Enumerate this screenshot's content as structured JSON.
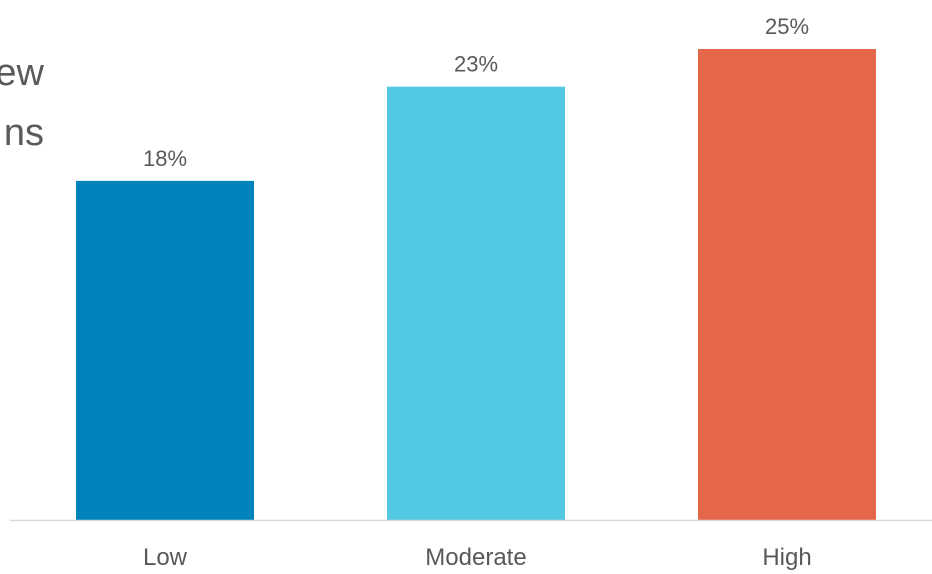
{
  "chart_data": {
    "type": "bar",
    "title_fragments": [
      "ew",
      "ns"
    ],
    "categories": [
      "Low",
      "Moderate",
      "High"
    ],
    "values": [
      18,
      23,
      25
    ],
    "data_labels": [
      "18%",
      "23%",
      "25%"
    ],
    "colors": [
      "#0083BB",
      "#52C8E2",
      "#E4674A"
    ],
    "ylim": [
      0,
      25
    ],
    "grid": false,
    "legend": "none"
  }
}
